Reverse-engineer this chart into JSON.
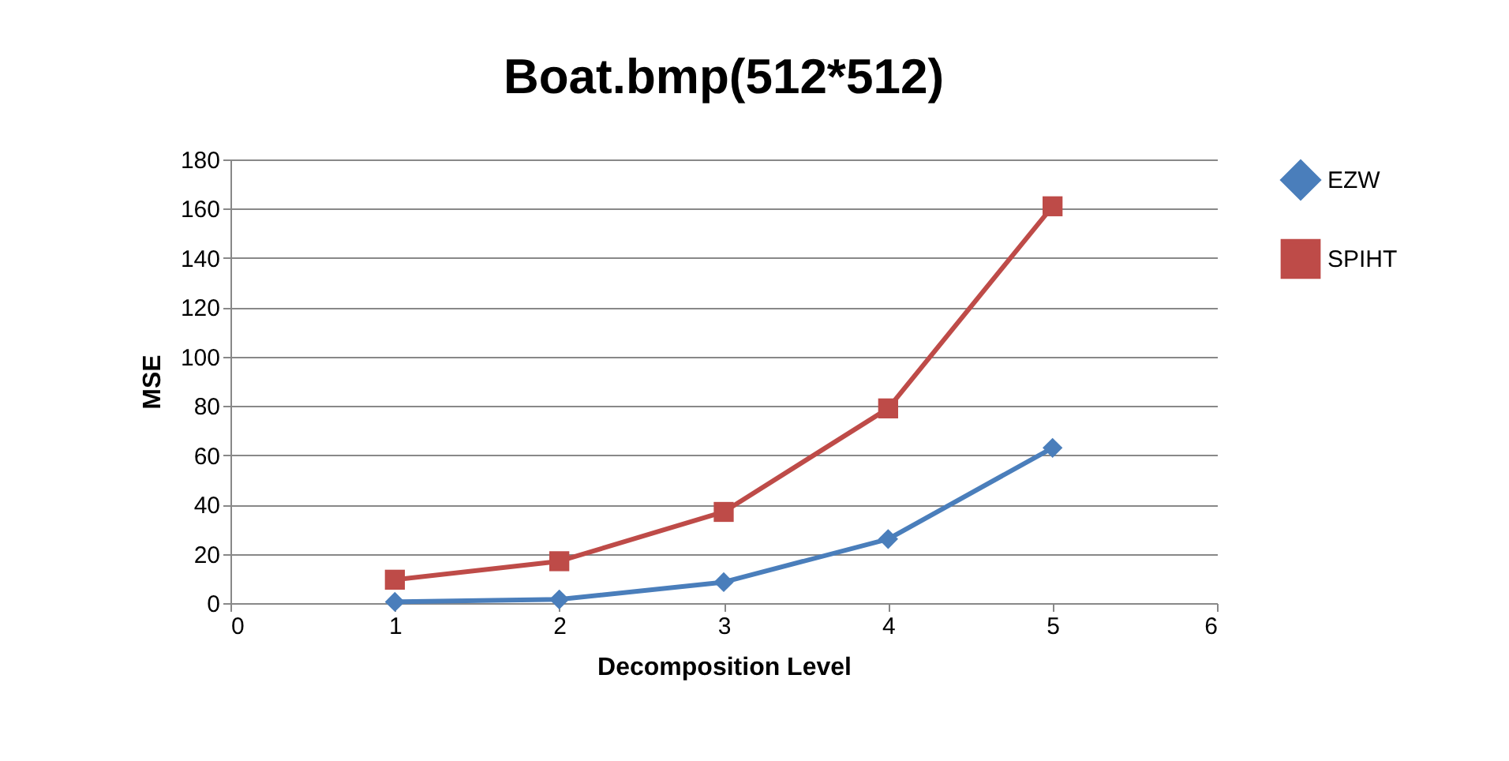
{
  "chart_data": {
    "type": "line",
    "title": "Boat.bmp(512*512)",
    "xlabel": "Decomposition Level",
    "ylabel": "MSE",
    "x": [
      1,
      2,
      3,
      4,
      5
    ],
    "series": [
      {
        "name": "EZW",
        "color": "#4a7ebb",
        "marker": "diamond",
        "values": [
          0.5,
          1.5,
          8.5,
          26,
          63
        ]
      },
      {
        "name": "SPIHT",
        "color": "#be4b48",
        "marker": "square",
        "values": [
          9.5,
          17,
          37,
          79,
          161
        ]
      }
    ],
    "xlim": [
      0,
      6
    ],
    "xticks": [
      0,
      1,
      2,
      3,
      4,
      5,
      6
    ],
    "ylim": [
      0,
      180
    ],
    "yticks": [
      0,
      20,
      40,
      60,
      80,
      100,
      120,
      140,
      160,
      180
    ],
    "grid": "y",
    "legend": "right"
  }
}
